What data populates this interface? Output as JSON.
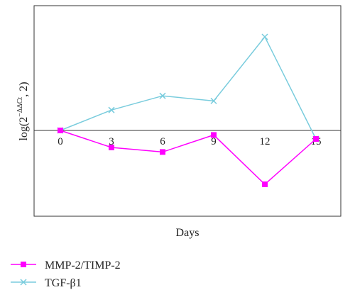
{
  "chart_data": {
    "type": "line",
    "xlabel": "Days",
    "ylabel_base": "log(2",
    "ylabel_sup": "−ΔΔCt",
    "ylabel_tail": ", 2)",
    "x": [
      0,
      3,
      6,
      9,
      12,
      15
    ],
    "x_ticks": [
      "0",
      "3",
      "6",
      "9",
      "12",
      "15"
    ],
    "xlim": [
      0,
      15
    ],
    "ylim": [
      -1.5,
      2.0
    ],
    "grid": false,
    "legend_position": "bottom-left",
    "series": [
      {
        "name": "MMP-2/TIMP-2",
        "values": [
          0,
          -0.3,
          -0.38,
          -0.08,
          -0.95,
          -0.15
        ],
        "color": "#ff00ff",
        "marker": "square"
      },
      {
        "name": "TGF-β1",
        "values": [
          0,
          0.36,
          0.61,
          0.52,
          1.65,
          -0.15
        ],
        "color": "#79ccdd",
        "marker": "x"
      }
    ]
  }
}
